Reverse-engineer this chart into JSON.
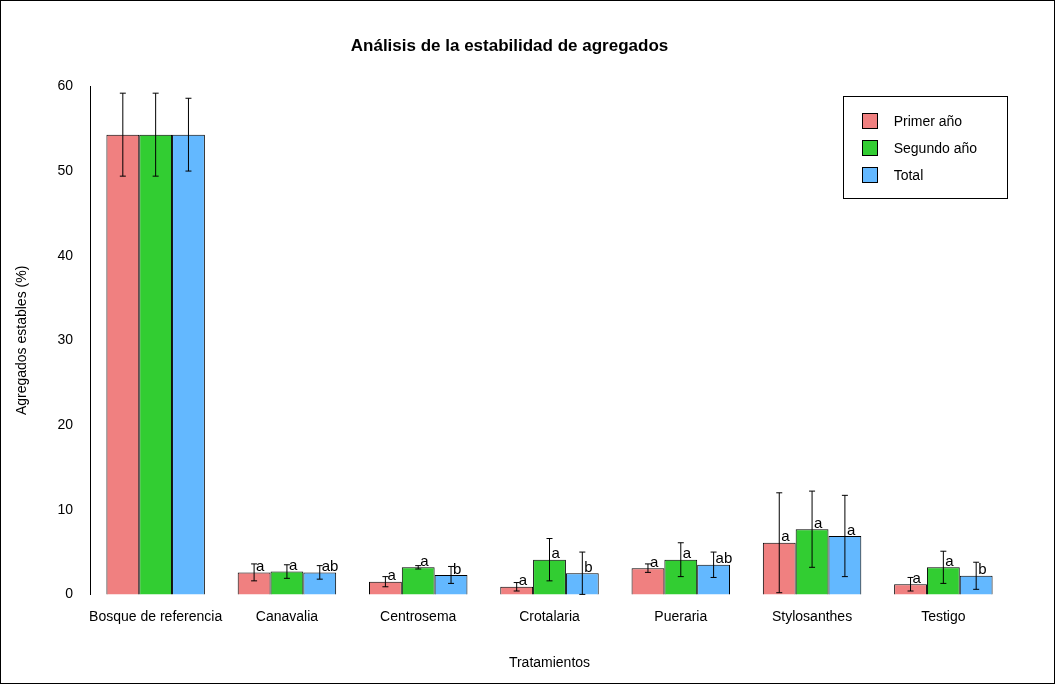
{
  "chart_data": {
    "type": "bar",
    "title": "Análisis de la estabilidad de agregados",
    "xlabel": "Tratamientos",
    "ylabel": "Agregados estables (%)",
    "categories": [
      "Bosque de referencia",
      "Canavalia",
      "Centrosema",
      "Crotalaria",
      "Pueraria",
      "Stylosanthes",
      "Testigo"
    ],
    "series": [
      {
        "name": "Primer año",
        "color": "#f08080",
        "values": [
          54.3,
          2.6,
          1.5,
          0.9,
          3.1,
          6.1,
          1.2
        ],
        "errors": [
          4.9,
          1.0,
          0.6,
          0.5,
          0.5,
          5.9,
          0.8
        ],
        "value_labels": [
          null,
          "a",
          "a",
          "a",
          "a",
          "a",
          "a"
        ]
      },
      {
        "name": "Segundo año",
        "color": "#32cd32",
        "values": [
          54.3,
          2.7,
          3.2,
          4.1,
          4.1,
          7.7,
          3.2
        ],
        "errors": [
          4.9,
          0.8,
          0.2,
          2.5,
          2.0,
          4.5,
          1.9
        ],
        "value_labels": [
          null,
          "a",
          "a",
          "a",
          "a",
          "a",
          "a"
        ]
      },
      {
        "name": "Total",
        "color": "#63b8ff",
        "values": [
          54.3,
          2.6,
          2.3,
          2.5,
          3.5,
          6.9,
          2.2
        ],
        "errors": [
          4.3,
          0.8,
          1.0,
          2.5,
          1.5,
          4.8,
          1.6
        ],
        "value_labels": [
          null,
          "ab",
          "b",
          "b",
          "ab",
          "a",
          "b"
        ]
      }
    ],
    "ylim": [
      0,
      60
    ],
    "yticks": [
      0,
      10,
      20,
      30,
      40,
      50,
      60
    ],
    "grid": false,
    "legend": "top right"
  }
}
